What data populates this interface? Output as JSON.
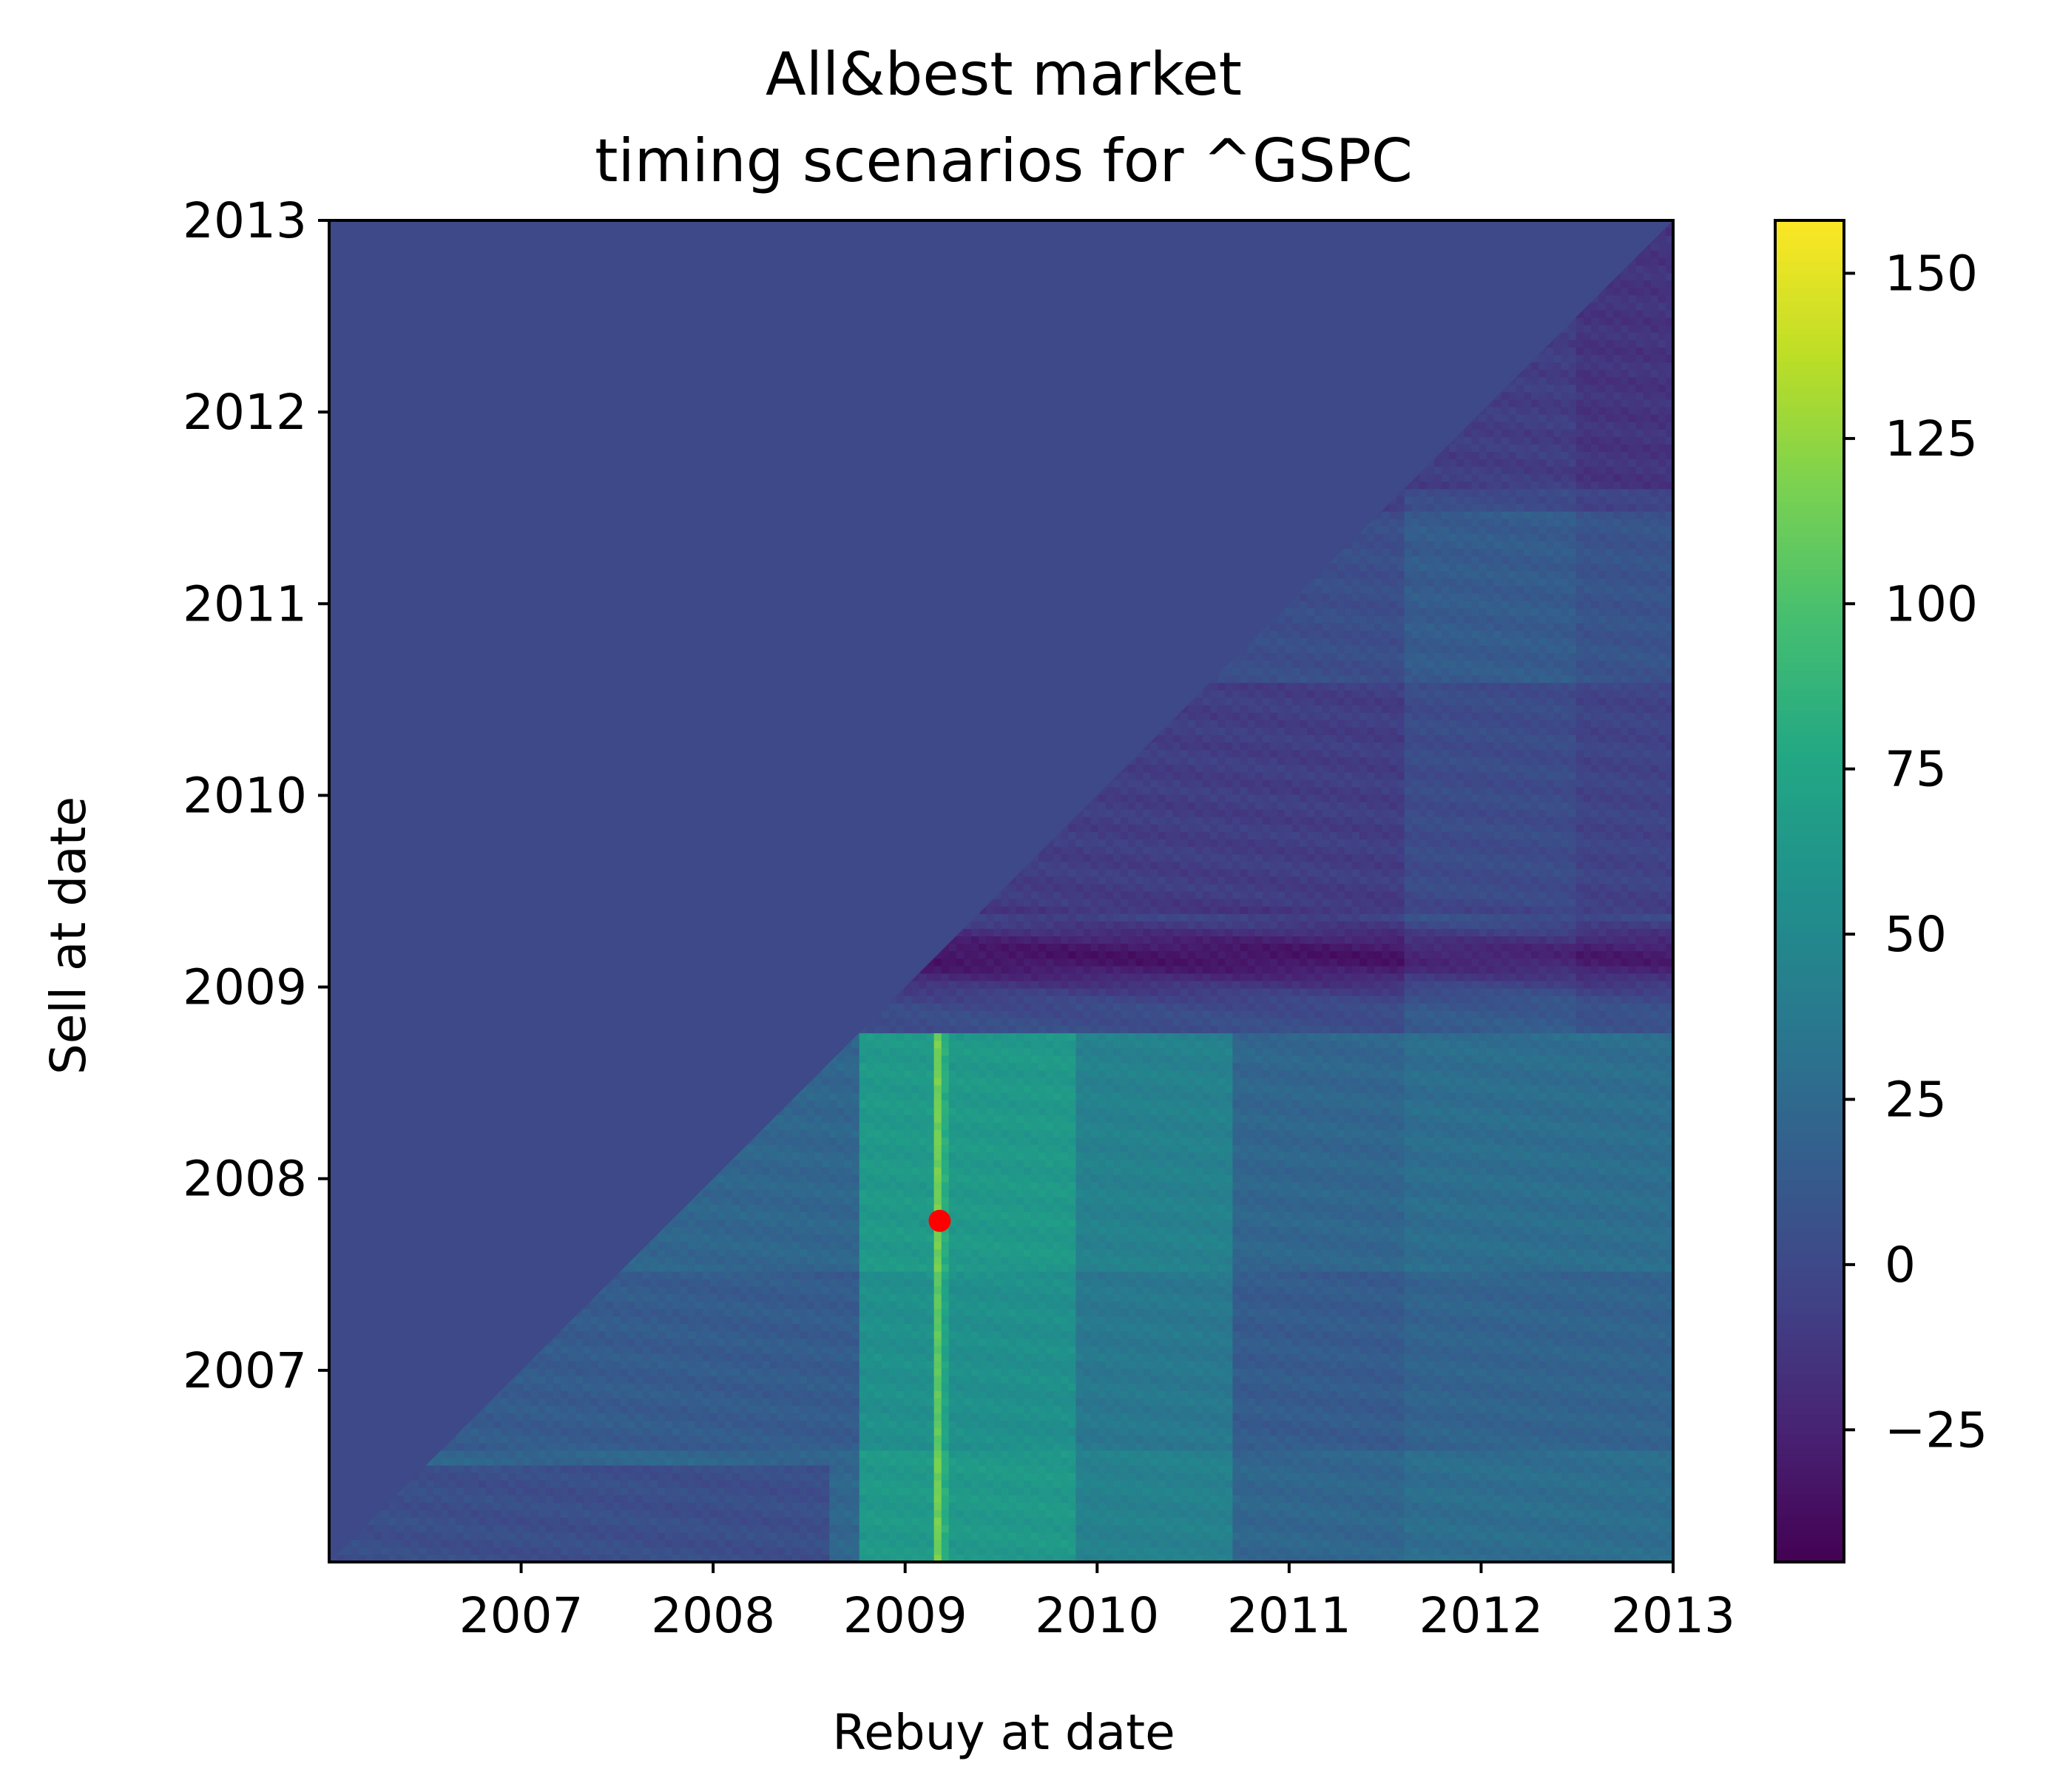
{
  "chart_data": {
    "type": "heatmap",
    "title_lines": [
      "All&best market",
      "timing scenarios for ^GSPC"
    ],
    "xlabel": "Rebuy at date",
    "ylabel": "Sell at date",
    "xlim": [
      2006.0,
      2013.0
    ],
    "ylim": [
      2006.0,
      2013.0
    ],
    "x_ticks": [
      {
        "value": 2007,
        "label": "2007"
      },
      {
        "value": 2008,
        "label": "2008"
      },
      {
        "value": 2009,
        "label": "2009"
      },
      {
        "value": 2010,
        "label": "2010"
      },
      {
        "value": 2011,
        "label": "2011"
      },
      {
        "value": 2012,
        "label": "2012"
      },
      {
        "value": 2013,
        "label": "2013"
      }
    ],
    "y_ticks": [
      {
        "value": 2007,
        "label": "2007"
      },
      {
        "value": 2008,
        "label": "2008"
      },
      {
        "value": 2009,
        "label": "2009"
      },
      {
        "value": 2010,
        "label": "2010"
      },
      {
        "value": 2011,
        "label": "2011"
      },
      {
        "value": 2012,
        "label": "2012"
      },
      {
        "value": 2013,
        "label": "2013"
      }
    ],
    "colorbar": {
      "colormap": "viridis",
      "vmin": -45,
      "vmax": 158,
      "ticks": [
        {
          "value": -25,
          "label": "−25"
        },
        {
          "value": 0,
          "label": "0"
        },
        {
          "value": 25,
          "label": "25"
        },
        {
          "value": 50,
          "label": "50"
        },
        {
          "value": 75,
          "label": "75"
        },
        {
          "value": 100,
          "label": "100"
        },
        {
          "value": 125,
          "label": "125"
        },
        {
          "value": 150,
          "label": "150"
        }
      ]
    },
    "fill_value_upper_triangle": 0,
    "grid": false,
    "highlight_point": {
      "x": 2009.18,
      "y": 2007.78,
      "color": "#ff0000"
    }
  }
}
